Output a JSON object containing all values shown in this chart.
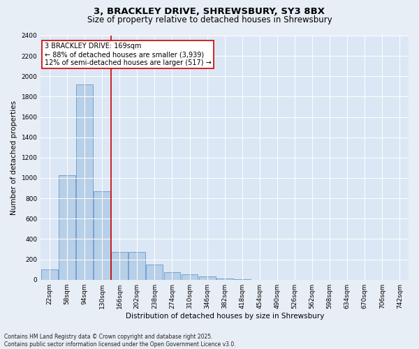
{
  "title1": "3, BRACKLEY DRIVE, SHREWSBURY, SY3 8BX",
  "title2": "Size of property relative to detached houses in Shrewsbury",
  "xlabel": "Distribution of detached houses by size in Shrewsbury",
  "ylabel": "Number of detached properties",
  "categories": [
    "22sqm",
    "58sqm",
    "94sqm",
    "130sqm",
    "166sqm",
    "202sqm",
    "238sqm",
    "274sqm",
    "310sqm",
    "346sqm",
    "382sqm",
    "418sqm",
    "454sqm",
    "490sqm",
    "526sqm",
    "562sqm",
    "598sqm",
    "634sqm",
    "670sqm",
    "706sqm",
    "742sqm"
  ],
  "values": [
    100,
    1030,
    1920,
    870,
    270,
    270,
    150,
    75,
    55,
    30,
    10,
    5,
    0,
    0,
    0,
    0,
    0,
    0,
    0,
    0,
    0
  ],
  "bar_color": "#b8cfe8",
  "bar_edge_color": "#6699cc",
  "vline_x": 3.5,
  "vline_color": "#cc0000",
  "annotation_text": "3 BRACKLEY DRIVE: 169sqm\n← 88% of detached houses are smaller (3,939)\n12% of semi-detached houses are larger (517) →",
  "annotation_box_color": "#ffffff",
  "annotation_box_edge": "#cc0000",
  "ylim": [
    0,
    2400
  ],
  "yticks": [
    0,
    200,
    400,
    600,
    800,
    1000,
    1200,
    1400,
    1600,
    1800,
    2000,
    2200,
    2400
  ],
  "bg_color": "#e8eef5",
  "plot_bg_color": "#dce7f5",
  "footnote": "Contains HM Land Registry data © Crown copyright and database right 2025.\nContains public sector information licensed under the Open Government Licence v3.0.",
  "title_fontsize": 9.5,
  "subtitle_fontsize": 8.5,
  "label_fontsize": 7.5,
  "tick_fontsize": 6.5,
  "annot_fontsize": 7,
  "ylabel_fontsize": 7.5,
  "footnote_fontsize": 5.5
}
